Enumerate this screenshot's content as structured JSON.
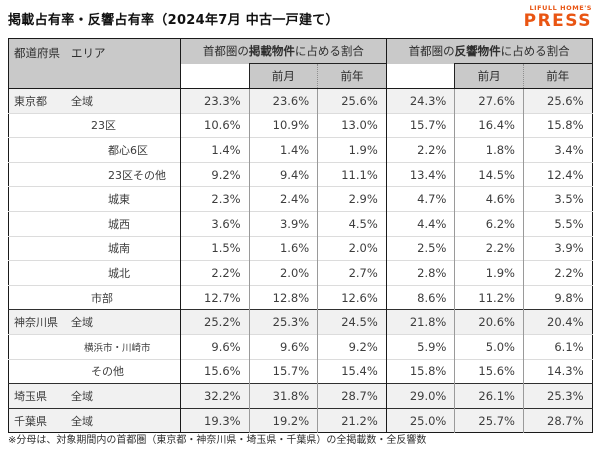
{
  "title": "掲載占有率・反響占有率（2024年7月 中古一戸建て）",
  "logo": {
    "tagline": "LIFULL HOME'S",
    "name": "PRESS",
    "color": "#e95513"
  },
  "colors": {
    "brand_orange": "#e95513",
    "header_gray": "#c9c9c9",
    "highlight_row_gray": "#f1f1f1",
    "grid_dark": "#1a1a1a",
    "grid_light": "#dcdcdc"
  },
  "table": {
    "corner_header": {
      "prefecture": "都道府県",
      "area": "エリア"
    },
    "groups": [
      {
        "prefix": "首都圏の",
        "emphasis": "掲載物件",
        "suffix": "に占める割合"
      },
      {
        "prefix": "首都圏の",
        "emphasis": "反響物件",
        "suffix": "に占める割合"
      }
    ],
    "subheaders": {
      "prev_month": "前月",
      "prev_year": "前年"
    }
  },
  "chart_data": {
    "type": "table",
    "title": "掲載占有率・反響占有率（2024年7月 中古一戸建て）",
    "column_groups": [
      "首都圏の掲載物件に占める割合",
      "首都圏の反響物件に占める割合"
    ],
    "columns": [
      "",
      "前月",
      "前年",
      "",
      "前月",
      "前年"
    ],
    "rows": [
      {
        "prefecture": "東京都",
        "area": "全域",
        "indent": 1,
        "highlight": true,
        "group_start": true,
        "values": [
          "23.3%",
          "23.6%",
          "25.6%",
          "24.3%",
          "27.6%",
          "25.6%"
        ]
      },
      {
        "prefecture": "",
        "area": "23区",
        "indent": 2,
        "highlight": false,
        "group_start": false,
        "values": [
          "10.6%",
          "10.9%",
          "13.0%",
          "15.7%",
          "16.4%",
          "15.8%"
        ]
      },
      {
        "prefecture": "",
        "area": "都心6区",
        "indent": 3,
        "highlight": false,
        "group_start": false,
        "values": [
          "1.4%",
          "1.4%",
          "1.9%",
          "2.2%",
          "1.8%",
          "3.4%"
        ]
      },
      {
        "prefecture": "",
        "area": "23区その他",
        "indent": 3,
        "highlight": false,
        "group_start": false,
        "values": [
          "9.2%",
          "9.4%",
          "11.1%",
          "13.4%",
          "14.5%",
          "12.4%"
        ]
      },
      {
        "prefecture": "",
        "area": "城東",
        "indent": 3,
        "highlight": false,
        "group_start": false,
        "values": [
          "2.3%",
          "2.4%",
          "2.9%",
          "4.7%",
          "4.6%",
          "3.5%"
        ]
      },
      {
        "prefecture": "",
        "area": "城西",
        "indent": 3,
        "highlight": false,
        "group_start": false,
        "values": [
          "3.6%",
          "3.9%",
          "4.5%",
          "4.4%",
          "6.2%",
          "5.5%"
        ]
      },
      {
        "prefecture": "",
        "area": "城南",
        "indent": 3,
        "highlight": false,
        "group_start": false,
        "values": [
          "1.5%",
          "1.6%",
          "2.0%",
          "2.5%",
          "2.2%",
          "3.9%"
        ]
      },
      {
        "prefecture": "",
        "area": "城北",
        "indent": 3,
        "highlight": false,
        "group_start": false,
        "values": [
          "2.2%",
          "2.0%",
          "2.7%",
          "2.8%",
          "1.9%",
          "2.2%"
        ]
      },
      {
        "prefecture": "",
        "area": "市部",
        "indent": 2,
        "highlight": false,
        "group_start": false,
        "values": [
          "12.7%",
          "12.8%",
          "12.6%",
          "8.6%",
          "11.2%",
          "9.8%"
        ]
      },
      {
        "prefecture": "神奈川県",
        "area": "全域",
        "indent": 1,
        "highlight": true,
        "group_start": true,
        "values": [
          "25.2%",
          "25.3%",
          "24.5%",
          "21.8%",
          "20.6%",
          "20.4%"
        ]
      },
      {
        "prefecture": "",
        "area": "横浜市・川崎市",
        "indent": 2,
        "small": true,
        "highlight": false,
        "group_start": false,
        "values": [
          "9.6%",
          "9.6%",
          "9.2%",
          "5.9%",
          "5.0%",
          "6.1%"
        ]
      },
      {
        "prefecture": "",
        "area": "その他",
        "indent": 2,
        "highlight": false,
        "group_start": false,
        "values": [
          "15.6%",
          "15.7%",
          "15.4%",
          "15.8%",
          "15.6%",
          "14.3%"
        ]
      },
      {
        "prefecture": "埼玉県",
        "area": "全域",
        "indent": 1,
        "highlight": true,
        "group_start": true,
        "values": [
          "32.2%",
          "31.8%",
          "28.7%",
          "29.0%",
          "26.1%",
          "25.3%"
        ]
      },
      {
        "prefecture": "千葉県",
        "area": "全域",
        "indent": 1,
        "highlight": true,
        "group_start": true,
        "values": [
          "19.3%",
          "19.2%",
          "21.2%",
          "25.0%",
          "25.7%",
          "28.7%"
        ]
      }
    ]
  },
  "footnote": "※分母は、対象期間内の首都圏（東京都・神奈川県・埼玉県・千葉県）の全掲載数・全反響数"
}
